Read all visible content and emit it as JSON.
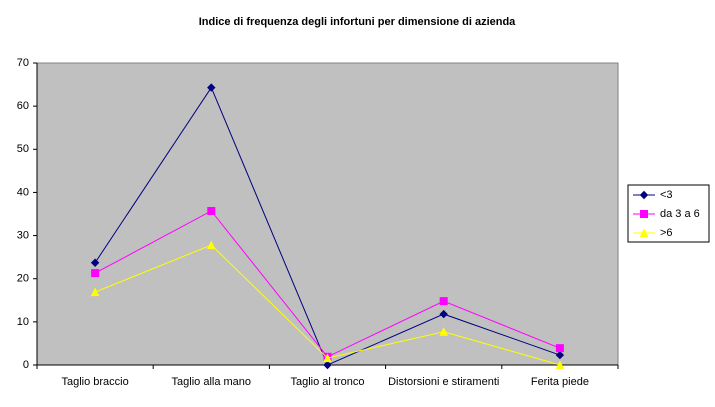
{
  "chart_data": {
    "type": "line",
    "title": "Indice di frequenza degli infortuni per dimensione di azienda",
    "categories": [
      "Taglio braccio",
      "Taglio alla mano",
      "Taglio al tronco",
      "Distorsioni e stiramenti",
      "Ferita piede"
    ],
    "series": [
      {
        "name": "<3",
        "color": "#000080",
        "marker": "diamond",
        "values": [
          23.7,
          64.3,
          0,
          11.8,
          2.3
        ]
      },
      {
        "name": "da 3 a 6",
        "color": "#ff00ff",
        "marker": "square",
        "values": [
          21.3,
          35.7,
          1.9,
          14.8,
          3.9
        ]
      },
      {
        "name": ">6",
        "color": "#ffff00",
        "marker": "triangle",
        "values": [
          16.9,
          27.8,
          1.6,
          7.7,
          0
        ]
      }
    ],
    "ylim": [
      0,
      70
    ],
    "yticks": [
      0,
      10,
      20,
      30,
      40,
      50,
      60,
      70
    ],
    "grid": false,
    "legend": "right"
  }
}
